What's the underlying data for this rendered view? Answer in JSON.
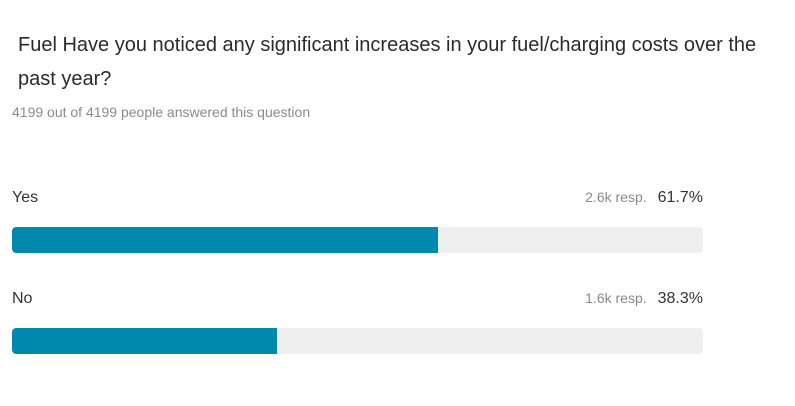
{
  "question": {
    "title": "Fuel Have you noticed any significant increases in your fuel/charging costs over the past year?",
    "answered_text": "4199 out of 4199 people answered this question"
  },
  "colors": {
    "bar_fill": "#0088ad",
    "bar_track": "#efefef"
  },
  "options": [
    {
      "label": "Yes",
      "responses": "2.6k resp.",
      "percent_text": "61.7%",
      "percent": 61.7
    },
    {
      "label": "No",
      "responses": "1.6k resp.",
      "percent_text": "38.3%",
      "percent": 38.3
    }
  ]
}
